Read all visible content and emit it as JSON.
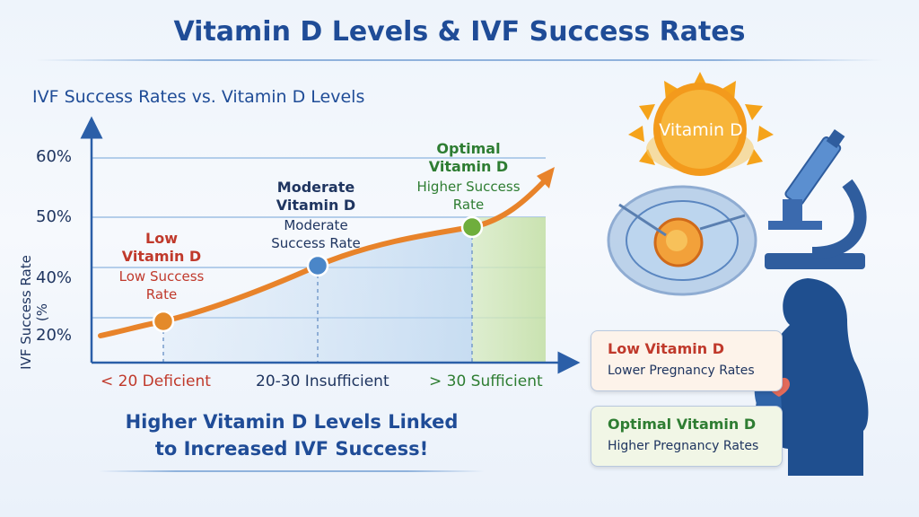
{
  "title": "Vitamin D Levels & IVF Success Rates",
  "chart_data": {
    "type": "line",
    "title": "IVF Success Rates vs. Vitamin D Levels",
    "ylabel": "IVF Success Rate (%",
    "yticks": [
      "20%",
      "40%",
      "50%",
      "60%"
    ],
    "categories": [
      "< 20 Deficient",
      "20-30 Insufficient",
      "> 30 Sufficient"
    ],
    "points": [
      {
        "category": "< 20 Deficient",
        "label": "Low Vitamin D",
        "sublabel": "Low Success Rate",
        "color": "#e48a2a"
      },
      {
        "category": "20-30 Insufficient",
        "label": "Moderate Vitamin D",
        "sublabel": "Moderate Success Rate",
        "color": "#4a86c8"
      },
      {
        "category": "> 30 Sufficient",
        "label": "Optimal Vitamin D",
        "sublabel": "Higher Success Rate",
        "color": "#6fae3c"
      }
    ],
    "trend_color": "#e8832a",
    "grid": true
  },
  "annotations": {
    "low": {
      "head_l1": "Low",
      "head_l2": "Vitamin D",
      "sub_l1": "Low Success",
      "sub_l2": "Rate"
    },
    "moderate": {
      "head_l1": "Moderate",
      "head_l2": "Vitamin D",
      "sub_l1": "Moderate",
      "sub_l2": "Success Rate"
    },
    "optimal": {
      "head_l1": "Optimal",
      "head_l2": "Vitamin D",
      "sub_l1": "Higher Success",
      "sub_l2": "Rate"
    }
  },
  "bottom_message": {
    "line1": "Higher Vitamin D Levels Linked",
    "line2": "to Increased IVF Success!"
  },
  "sun_label": "Vitamin D",
  "cards": [
    {
      "title": "Low Vitamin D",
      "text": "Lower Pregnancy Rates",
      "color": "#c0392b"
    },
    {
      "title": "Optimal Vitamin D",
      "text": "Higher Pregnancy Rates",
      "color": "#2e7d32"
    }
  ],
  "colors": {
    "brand_blue": "#1f4c97",
    "axis": "#2b5fa8",
    "low": "#c0392b",
    "optimal": "#2e7d32"
  }
}
